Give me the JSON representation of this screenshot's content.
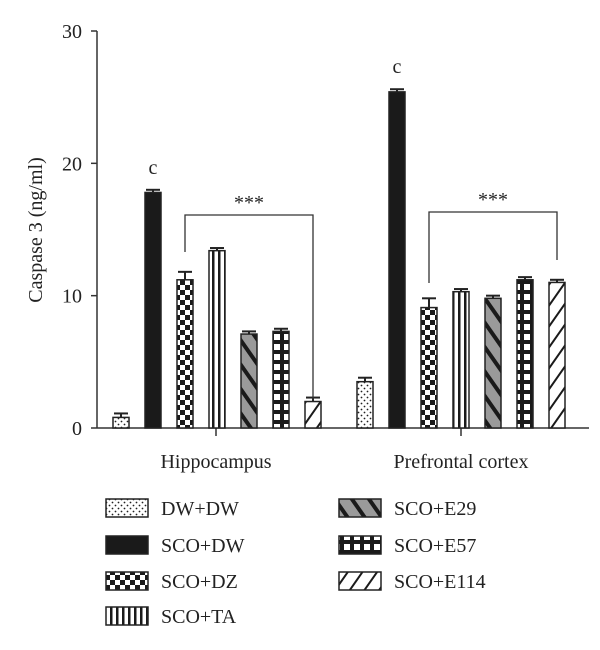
{
  "chart_data": {
    "type": "bar",
    "ylabel": "Caspase 3 (ng/ml)",
    "ylim": [
      0,
      30
    ],
    "yticks": [
      0,
      10,
      20,
      30
    ],
    "categories": [
      "Hippocampus",
      "Prefrontal cortex"
    ],
    "series": [
      {
        "name": "DW+DW",
        "values": [
          0.8,
          3.5
        ],
        "errors": [
          0.3,
          0.3
        ],
        "pattern": "dots"
      },
      {
        "name": "SCO+DW",
        "values": [
          17.8,
          25.4
        ],
        "errors": [
          0.2,
          0.2
        ],
        "pattern": "solid"
      },
      {
        "name": "SCO+DZ",
        "values": [
          11.2,
          9.1
        ],
        "errors": [
          0.6,
          0.7
        ],
        "pattern": "checker"
      },
      {
        "name": "SCO+TA",
        "values": [
          13.4,
          10.3
        ],
        "errors": [
          0.2,
          0.2
        ],
        "pattern": "vstripes"
      },
      {
        "name": "SCO+E29",
        "values": [
          7.1,
          9.8
        ],
        "errors": [
          0.2,
          0.2
        ],
        "pattern": "diag-gray"
      },
      {
        "name": "SCO+E57",
        "values": [
          7.3,
          11.2
        ],
        "errors": [
          0.2,
          0.2
        ],
        "pattern": "grid"
      },
      {
        "name": "SCO+E114",
        "values": [
          2.0,
          11.0
        ],
        "errors": [
          0.3,
          0.2
        ],
        "pattern": "diag-white"
      }
    ],
    "annotations": {
      "significance_letter": "c",
      "significance_stars": "***"
    },
    "legend_position": "bottom"
  },
  "colors": {
    "solid": "#1a1a1a",
    "gray_fill": "#9a9a9a",
    "outline": "#222222"
  }
}
